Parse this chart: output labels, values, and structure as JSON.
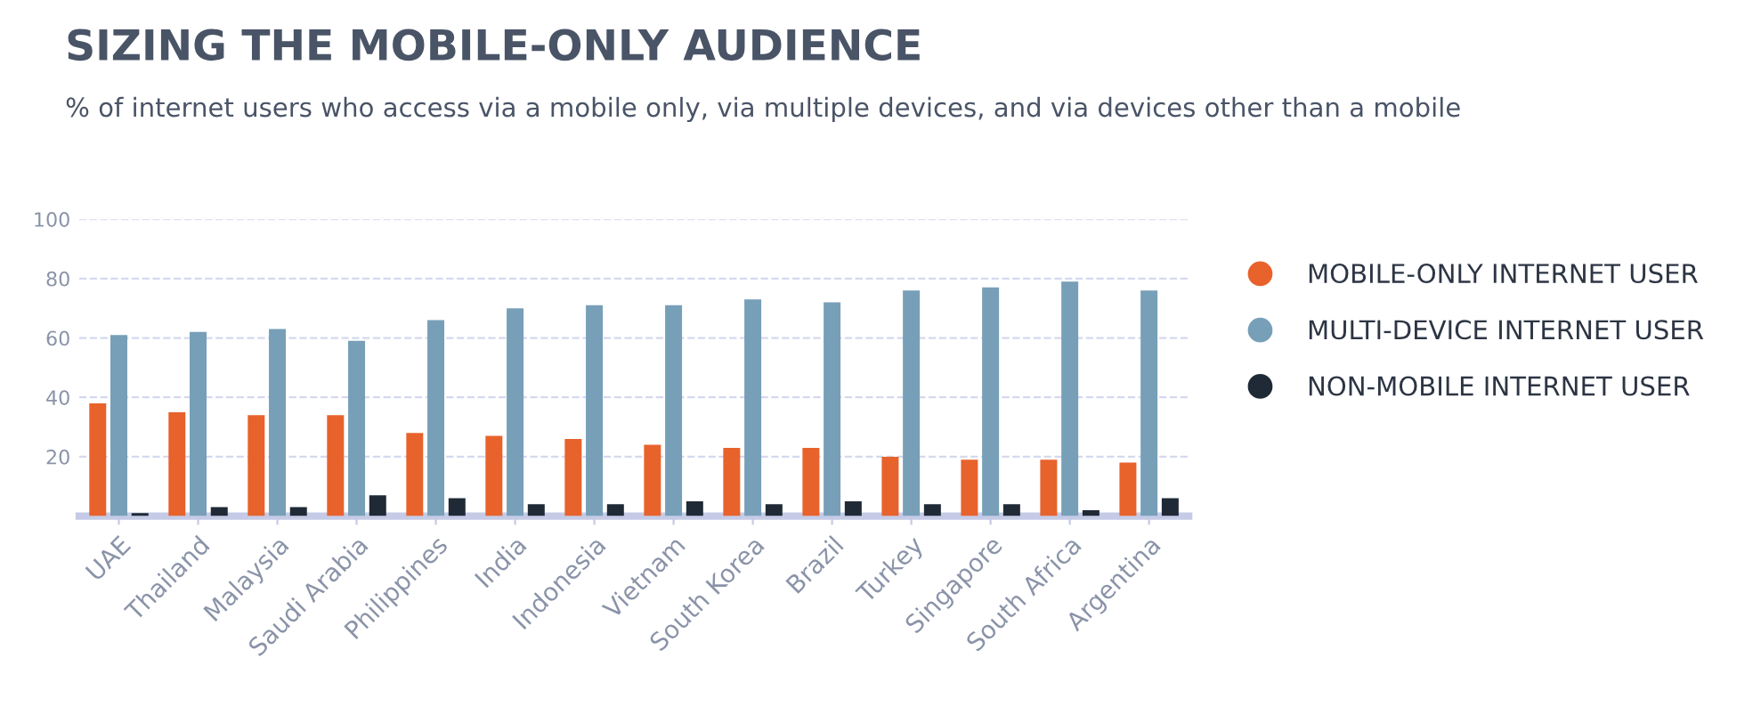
{
  "chart_data": {
    "type": "bar",
    "title": "SIZING THE MOBILE-ONLY AUDIENCE",
    "subtitle": "% of internet users who access via a mobile only, via multiple devices, and via devices other than a mobile",
    "categories": [
      "UAE",
      "Thailand",
      "Malaysia",
      "Saudi Arabia",
      "Philippines",
      "India",
      "Indonesia",
      "Vietnam",
      "South Korea",
      "Brazil",
      "Turkey",
      "Singapore",
      "South Africa",
      "Argentina"
    ],
    "series": [
      {
        "name": "MOBILE-ONLY INTERNET USER",
        "color": "#e8622c",
        "values": [
          38,
          35,
          34,
          34,
          28,
          27,
          26,
          24,
          23,
          23,
          20,
          19,
          19,
          18
        ]
      },
      {
        "name": "MULTI-DEVICE INTERNET USER",
        "color": "#779fb8",
        "values": [
          61,
          62,
          63,
          59,
          66,
          70,
          71,
          71,
          73,
          72,
          76,
          77,
          79,
          76
        ]
      },
      {
        "name": "NON-MOBILE INTERNET USER",
        "color": "#1f2a36",
        "values": [
          1,
          3,
          3,
          7,
          6,
          4,
          4,
          5,
          4,
          5,
          4,
          4,
          2,
          6
        ]
      }
    ],
    "ylim": [
      0,
      100
    ],
    "yticks": [
      20,
      40,
      60,
      80,
      100
    ],
    "grid": "y",
    "legend": "right"
  }
}
